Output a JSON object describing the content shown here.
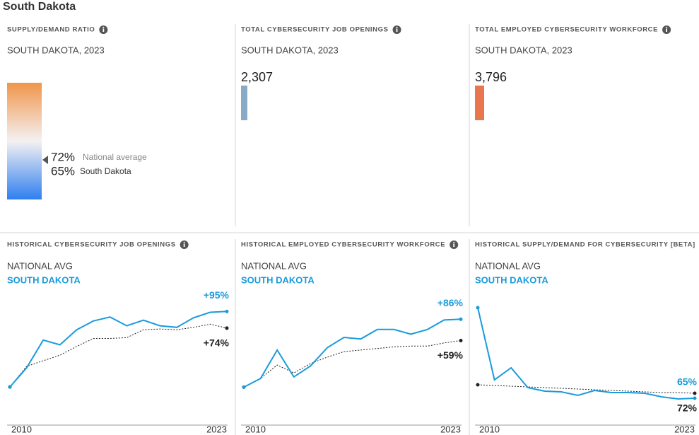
{
  "title": "South Dakota",
  "kpis": [
    {
      "heading": "SUPPLY/DEMAND RATIO",
      "subheading": "SOUTH DAKOTA, 2023",
      "items": [
        {
          "value_label": "72%",
          "name": "National average"
        },
        {
          "value_label": "65%",
          "name": "South Dakota"
        }
      ]
    },
    {
      "heading": "TOTAL CYBERSECURITY JOB OPENINGS",
      "subheading": "SOUTH DAKOTA, 2023",
      "value_label": "2,307"
    },
    {
      "heading": "TOTAL EMPLOYED CYBERSECURITY WORKFORCE",
      "subheading": "SOUTH DAKOTA, 2023",
      "value_label": "3,796"
    }
  ],
  "chart_data": [
    {
      "type": "line",
      "title": "HISTORICAL CYBERSECURITY JOB OPENINGS",
      "x": [
        2010,
        2011,
        2012,
        2013,
        2014,
        2015,
        2016,
        2017,
        2018,
        2019,
        2020,
        2021,
        2022,
        2023
      ],
      "xlim": [
        2010,
        2023
      ],
      "xticks": [
        2010,
        2023
      ],
      "ylim": [
        -48,
        122
      ],
      "series": [
        {
          "name": "NATIONAL AVG",
          "color": "#222222",
          "dashed": true,
          "values": [
            0,
            26,
            33,
            40,
            51,
            61,
            61,
            62,
            72,
            73,
            72,
            75,
            79,
            74
          ],
          "value_labels": [
            null,
            null,
            null,
            null,
            null,
            null,
            null,
            null,
            null,
            null,
            null,
            null,
            null,
            "+74%"
          ]
        },
        {
          "name": "SOUTH DAKOTA",
          "color": "#1a9bdc",
          "dashed": false,
          "values": [
            0,
            24,
            59,
            53,
            72,
            83,
            88,
            77,
            84,
            77,
            75,
            87,
            94,
            95
          ],
          "value_labels": [
            null,
            null,
            null,
            null,
            null,
            null,
            null,
            null,
            null,
            null,
            null,
            null,
            null,
            "+95%"
          ]
        }
      ]
    },
    {
      "type": "line",
      "title": "HISTORICAL EMPLOYED CYBERSECURITY WORKFORCE",
      "x": [
        2010,
        2011,
        2012,
        2013,
        2014,
        2015,
        2016,
        2017,
        2018,
        2019,
        2020,
        2021,
        2022,
        2023
      ],
      "xlim": [
        2010,
        2023
      ],
      "xticks": [
        2010,
        2023
      ],
      "ylim": [
        -48,
        123
      ],
      "series": [
        {
          "name": "NATIONAL AVG",
          "color": "#222222",
          "dashed": true,
          "values": [
            0,
            11,
            28,
            18,
            30,
            38,
            45,
            47,
            49,
            51,
            52,
            52,
            56,
            59
          ],
          "value_labels": [
            null,
            null,
            null,
            null,
            null,
            null,
            null,
            null,
            null,
            null,
            null,
            null,
            null,
            "+59%"
          ]
        },
        {
          "name": "SOUTH DAKOTA",
          "color": "#1a9bdc",
          "dashed": false,
          "values": [
            0,
            11,
            47,
            13,
            27,
            50,
            63,
            61,
            73,
            73,
            67,
            73,
            85,
            86
          ],
          "value_labels": [
            null,
            null,
            null,
            null,
            null,
            null,
            null,
            null,
            null,
            null,
            null,
            null,
            null,
            "+86%"
          ]
        }
      ]
    },
    {
      "type": "line",
      "title": "HISTORICAL SUPPLY/DEMAND FOR CYBERSECURITY [BETA]",
      "x": [
        2010,
        2011,
        2012,
        2013,
        2014,
        2015,
        2016,
        2017,
        2018,
        2019,
        2020,
        2021,
        2022,
        2023
      ],
      "xlim": [
        2010,
        2023
      ],
      "xticks": [
        2010,
        2023
      ],
      "ylim": [
        27,
        218
      ],
      "series": [
        {
          "name": "NATIONAL AVG",
          "color": "#222222",
          "dashed": true,
          "values": [
            84,
            83,
            82,
            81,
            80,
            79,
            78,
            77,
            76,
            75,
            74,
            73,
            73,
            72
          ],
          "value_labels": [
            null,
            null,
            null,
            null,
            null,
            null,
            null,
            null,
            null,
            null,
            null,
            null,
            null,
            "72%"
          ]
        },
        {
          "name": "SOUTH DAKOTA",
          "color": "#1a9bdc",
          "dashed": false,
          "values": [
            193,
            91,
            108,
            80,
            75,
            74,
            69,
            76,
            73,
            73,
            72,
            67,
            64,
            65
          ],
          "value_labels": [
            null,
            null,
            null,
            null,
            null,
            null,
            null,
            null,
            null,
            null,
            null,
            null,
            null,
            "65%"
          ]
        }
      ]
    }
  ]
}
